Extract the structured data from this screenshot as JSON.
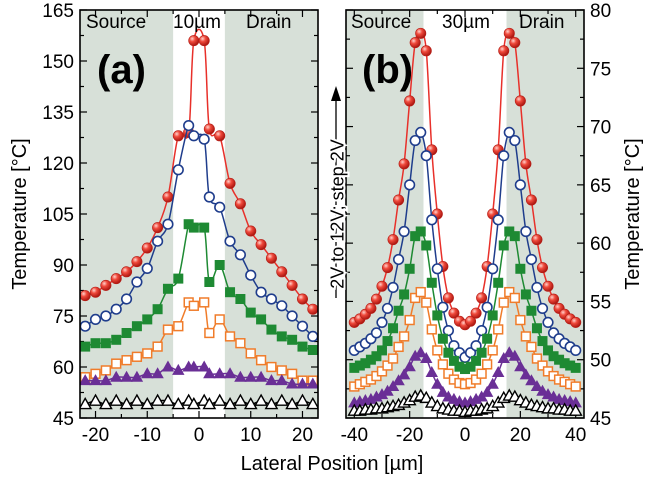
{
  "figure": {
    "xlabel": "Lateral Position [µm]",
    "annotation": "2V to 12V; step 2V"
  },
  "chart_data": [
    {
      "type": "line",
      "panel_label": "(a)",
      "region_labels": {
        "left": "Source",
        "center": "10µm",
        "right": "Drain"
      },
      "ylabel": "Temperature [°C]",
      "xlim": [
        -23,
        23
      ],
      "ylim": [
        45,
        165
      ],
      "xticks": [
        -20,
        -10,
        0,
        10,
        20
      ],
      "yticks": [
        45,
        60,
        75,
        90,
        105,
        120,
        135,
        150,
        165
      ],
      "regions": {
        "source": [
          -23,
          -5
        ],
        "drain": [
          5,
          23
        ]
      },
      "x": [
        -22,
        -20,
        -18,
        -16,
        -14,
        -12,
        -10,
        -8,
        -6,
        -4,
        -2,
        -1,
        1,
        2,
        4,
        6,
        8,
        10,
        12,
        14,
        16,
        18,
        20,
        22
      ],
      "series": [
        {
          "marker": "filled-circle",
          "color": "#e8302a",
          "values": [
            81,
            82,
            84,
            86,
            88,
            91,
            95,
            101,
            110,
            128,
            129,
            156,
            156,
            130,
            128,
            114,
            108,
            100,
            96,
            92,
            88,
            84,
            80,
            77
          ]
        },
        {
          "marker": "open-circle",
          "color": "#1f3d8c",
          "values": [
            72,
            74,
            75,
            77,
            80,
            85,
            89,
            97,
            102,
            118,
            131,
            128,
            127,
            110,
            107,
            97,
            93,
            87,
            82,
            80,
            78,
            75,
            72,
            69
          ]
        },
        {
          "marker": "filled-square",
          "color": "#1e8a33",
          "values": [
            66,
            67,
            67,
            68,
            70,
            72,
            74,
            77,
            83,
            86,
            102,
            101,
            101,
            85,
            90,
            82,
            80,
            76,
            74,
            71,
            69,
            68,
            66,
            65
          ]
        },
        {
          "marker": "open-square",
          "color": "#f07c2a",
          "values": [
            57,
            58,
            59,
            61,
            62,
            63,
            64,
            66,
            71,
            72,
            79,
            78,
            79,
            70,
            74,
            69,
            67,
            64,
            62,
            60,
            59,
            58,
            56,
            56
          ]
        },
        {
          "marker": "filled-triangle",
          "color": "#6a2f96",
          "values": [
            56,
            56,
            56,
            57,
            57,
            57,
            58,
            58,
            60,
            59,
            60,
            60,
            60,
            58,
            58,
            58,
            57,
            57,
            57,
            56,
            56,
            55,
            55,
            55
          ]
        },
        {
          "marker": "open-triangle",
          "color": "#000000",
          "values": [
            49,
            50,
            49,
            50,
            49,
            50,
            49,
            50,
            50,
            49,
            50,
            49,
            50,
            49,
            50,
            49,
            50,
            49,
            50,
            49,
            50,
            49,
            50,
            49
          ]
        }
      ]
    },
    {
      "type": "line",
      "panel_label": "(b)",
      "region_labels": {
        "left": "Source",
        "center": "30µm",
        "right": "Drain"
      },
      "ylabel": "Temperature [°C]",
      "xlim": [
        -43,
        43
      ],
      "ylim": [
        45,
        80
      ],
      "xticks": [
        -40,
        -20,
        0,
        20,
        40
      ],
      "yticks": [
        45,
        50,
        55,
        60,
        65,
        70,
        75,
        80
      ],
      "regions": {
        "source": [
          -43,
          -15
        ],
        "drain": [
          15,
          43
        ]
      },
      "x": [
        -40,
        -38,
        -36,
        -34,
        -32,
        -30,
        -28,
        -26,
        -24,
        -22,
        -20,
        -18,
        -16,
        -14,
        -12,
        -10,
        -8,
        -6,
        -4,
        -2,
        0,
        2,
        4,
        6,
        8,
        10,
        12,
        14,
        16,
        18,
        20,
        22,
        24,
        26,
        28,
        30,
        32,
        34,
        36,
        38,
        40
      ],
      "series": [
        {
          "marker": "filled-circle",
          "color": "#e8302a",
          "values": [
            53.2,
            53.5,
            53.9,
            54.4,
            55.2,
            56.3,
            57.9,
            60.3,
            63.7,
            66.8,
            72.2,
            77.2,
            78.0,
            76.5,
            68.0,
            62.5,
            58.0,
            55.3,
            54.0,
            53.3,
            53.0,
            53.3,
            54.0,
            55.3,
            58.0,
            62.5,
            68.0,
            76.5,
            78.0,
            77.2,
            72.2,
            66.8,
            63.7,
            60.3,
            57.9,
            56.3,
            55.2,
            54.4,
            53.9,
            53.5,
            53.2
          ]
        },
        {
          "marker": "open-circle",
          "color": "#1f3d8c",
          "values": [
            50.8,
            51.1,
            51.4,
            51.8,
            52.3,
            53.2,
            54.4,
            56.2,
            58.6,
            61.0,
            65.0,
            68.8,
            69.5,
            67.5,
            62.0,
            57.8,
            54.5,
            52.5,
            51.2,
            50.6,
            50.2,
            50.6,
            51.2,
            52.5,
            54.5,
            57.8,
            62.0,
            67.5,
            69.5,
            68.8,
            65.0,
            61.0,
            58.6,
            56.2,
            54.4,
            53.2,
            52.3,
            51.8,
            51.4,
            51.1,
            50.8
          ]
        },
        {
          "marker": "filled-square",
          "color": "#1e8a33",
          "values": [
            49.3,
            49.5,
            49.7,
            50.0,
            50.3,
            50.8,
            51.6,
            52.7,
            54.2,
            55.6,
            57.8,
            60.6,
            61.0,
            59.8,
            56.6,
            53.8,
            51.8,
            50.6,
            49.9,
            49.4,
            49.2,
            49.4,
            49.9,
            50.6,
            51.8,
            53.8,
            56.6,
            59.8,
            61.0,
            60.6,
            57.8,
            55.6,
            54.2,
            52.7,
            51.6,
            50.8,
            50.3,
            50.0,
            49.7,
            49.5,
            49.3
          ]
        },
        {
          "marker": "open-square",
          "color": "#f07c2a",
          "values": [
            47.7,
            47.9,
            48.1,
            48.3,
            48.6,
            49.0,
            49.5,
            50.1,
            51.1,
            52.0,
            53.4,
            55.3,
            55.8,
            54.9,
            52.6,
            50.8,
            49.6,
            48.8,
            48.3,
            48.0,
            47.9,
            48.0,
            48.3,
            48.8,
            49.6,
            50.8,
            52.6,
            54.9,
            55.8,
            55.3,
            53.4,
            52.0,
            51.1,
            50.1,
            49.5,
            49.0,
            48.6,
            48.3,
            48.1,
            47.9,
            47.7
          ]
        },
        {
          "marker": "filled-triangle",
          "color": "#6a2f96",
          "values": [
            46.3,
            46.4,
            46.5,
            46.6,
            46.8,
            47.0,
            47.3,
            47.7,
            48.2,
            48.7,
            49.4,
            50.3,
            50.6,
            50.1,
            48.9,
            47.9,
            47.2,
            46.8,
            46.6,
            46.4,
            46.3,
            46.4,
            46.6,
            46.8,
            47.2,
            47.9,
            48.9,
            50.1,
            50.6,
            50.3,
            49.4,
            48.7,
            48.2,
            47.7,
            47.3,
            47.0,
            46.8,
            46.6,
            46.5,
            46.4,
            46.3
          ]
        },
        {
          "marker": "open-triangle",
          "color": "#000000",
          "values": [
            45.6,
            45.6,
            45.7,
            45.7,
            45.8,
            45.8,
            45.9,
            46.0,
            46.1,
            46.3,
            46.5,
            46.8,
            46.9,
            46.7,
            46.3,
            46.0,
            45.8,
            45.7,
            45.6,
            45.6,
            45.5,
            45.6,
            45.6,
            45.7,
            45.8,
            46.0,
            46.3,
            46.7,
            46.9,
            46.8,
            46.5,
            46.3,
            46.1,
            46.0,
            45.9,
            45.8,
            45.8,
            45.7,
            45.7,
            45.6,
            45.6
          ]
        }
      ]
    }
  ]
}
